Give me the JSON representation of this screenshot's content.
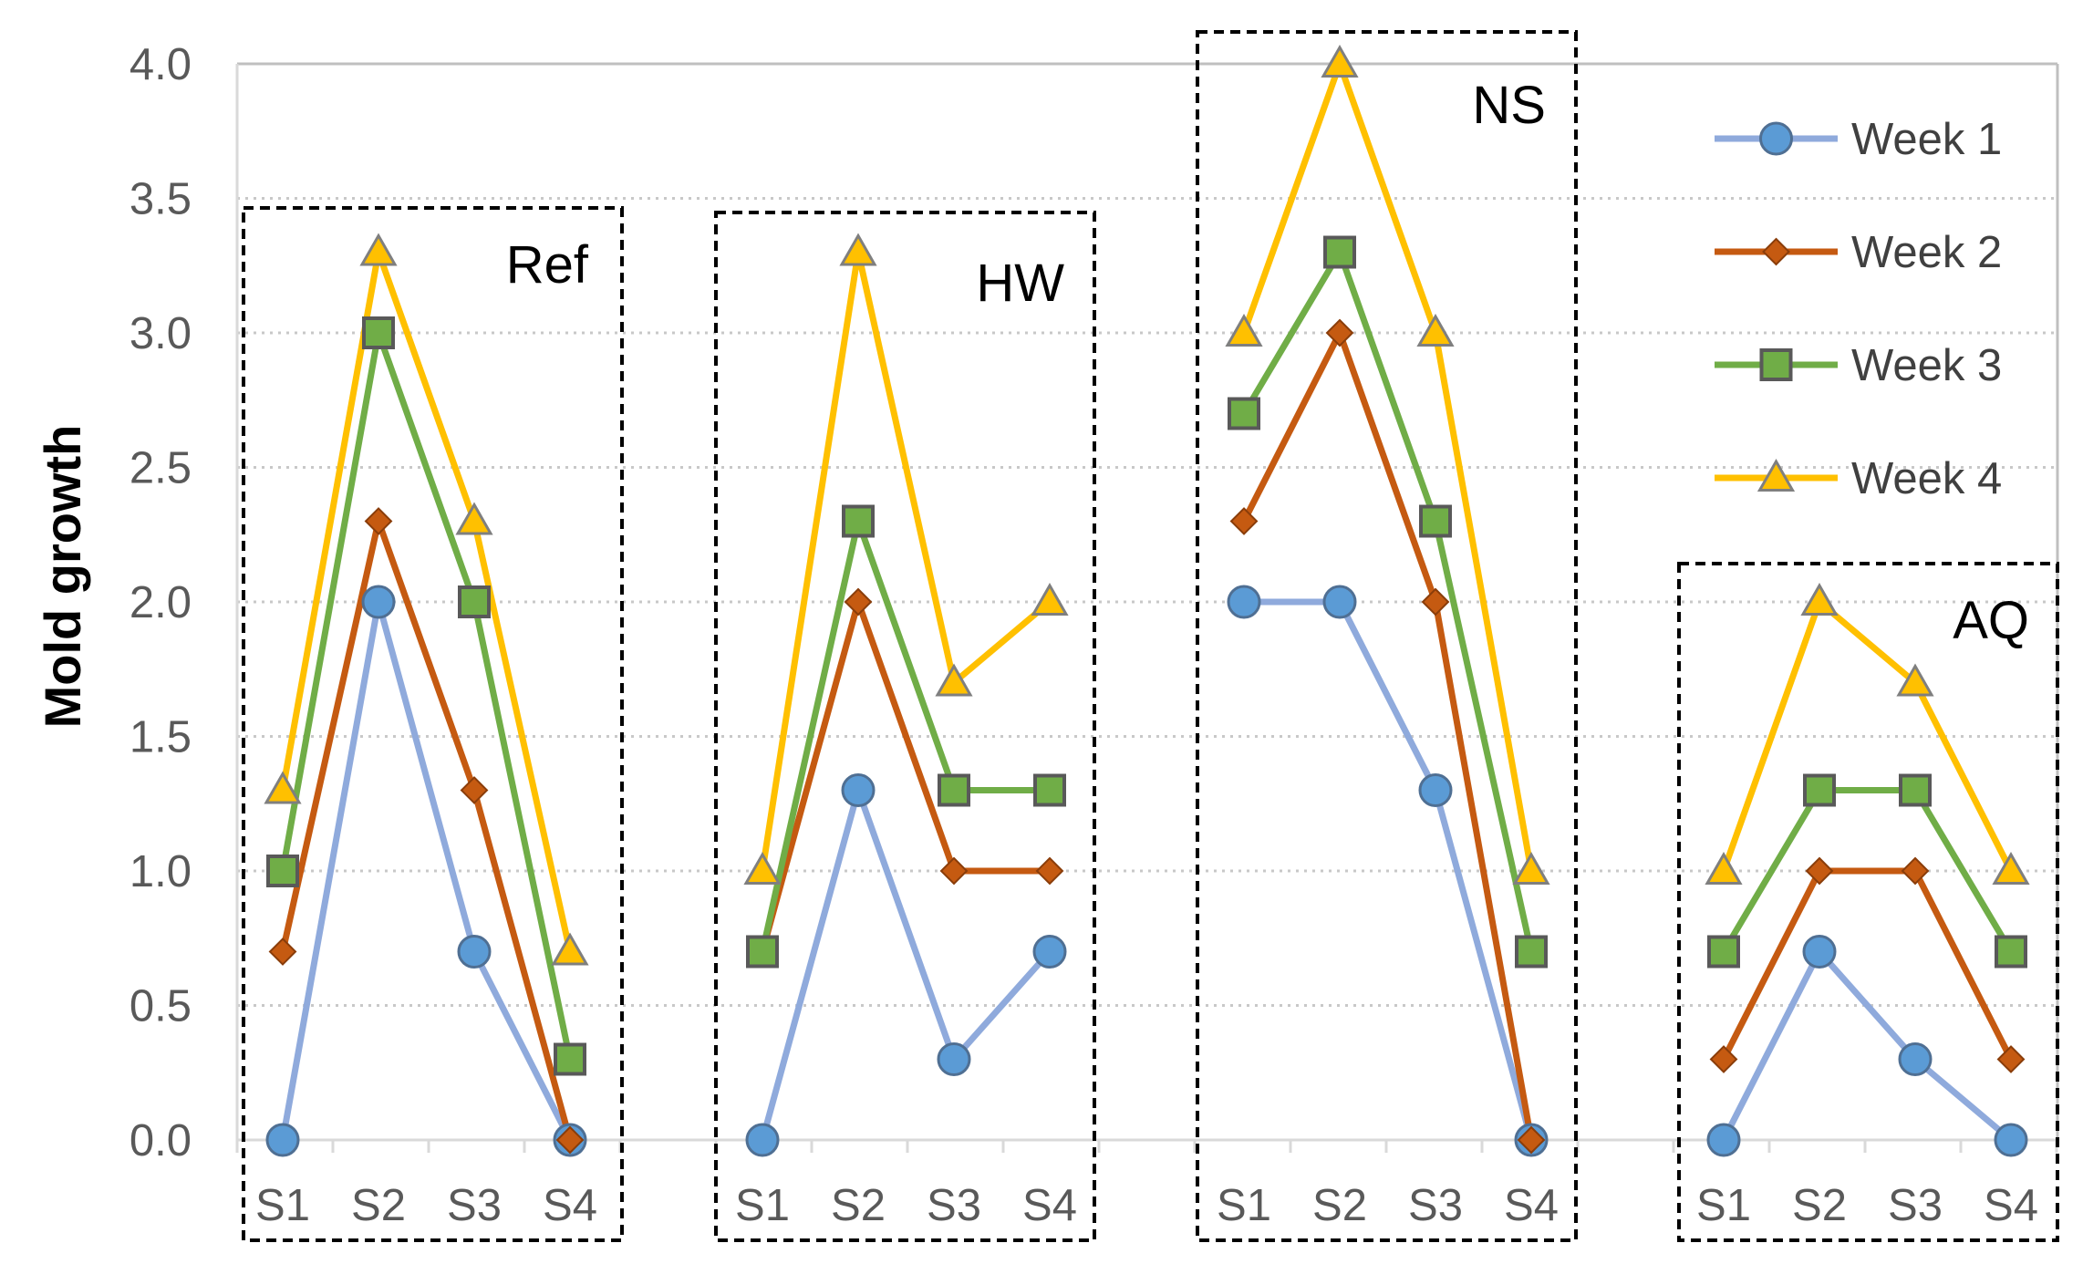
{
  "chart_data": {
    "type": "line",
    "ylabel": "Mold growth",
    "ylim": [
      0,
      4
    ],
    "yticks": [
      "0.0",
      "0.5",
      "1.0",
      "1.5",
      "2.0",
      "2.5",
      "3.0",
      "3.5",
      "4.0"
    ],
    "grid": true,
    "legend_position": "top-right",
    "categories": [
      "S1",
      "S2",
      "S3",
      "S4"
    ],
    "groups": [
      {
        "label": "Ref",
        "series": [
          {
            "name": "Week 1",
            "values": [
              0.0,
              2.0,
              0.7,
              0.0
            ]
          },
          {
            "name": "Week 2",
            "values": [
              0.7,
              2.3,
              1.3,
              0.0
            ]
          },
          {
            "name": "Week 3",
            "values": [
              1.0,
              3.0,
              2.0,
              0.3
            ]
          },
          {
            "name": "Week 4",
            "values": [
              1.3,
              3.3,
              2.3,
              0.7
            ]
          }
        ]
      },
      {
        "label": "HW",
        "series": [
          {
            "name": "Week 1",
            "values": [
              0.0,
              1.3,
              0.3,
              0.7
            ]
          },
          {
            "name": "Week 2",
            "values": [
              0.7,
              2.0,
              1.0,
              1.0
            ]
          },
          {
            "name": "Week 3",
            "values": [
              0.7,
              2.3,
              1.3,
              1.3
            ]
          },
          {
            "name": "Week 4",
            "values": [
              1.0,
              3.3,
              1.7,
              2.0
            ]
          }
        ]
      },
      {
        "label": "NS",
        "series": [
          {
            "name": "Week 1",
            "values": [
              2.0,
              2.0,
              1.3,
              0.0
            ]
          },
          {
            "name": "Week 2",
            "values": [
              2.3,
              3.0,
              2.0,
              0.0
            ]
          },
          {
            "name": "Week 3",
            "values": [
              2.7,
              3.3,
              2.3,
              0.7
            ]
          },
          {
            "name": "Week 4",
            "values": [
              3.0,
              4.0,
              3.0,
              1.0
            ]
          }
        ]
      },
      {
        "label": "AQ",
        "series": [
          {
            "name": "Week 1",
            "values": [
              0.0,
              0.7,
              0.3,
              0.0
            ]
          },
          {
            "name": "Week 2",
            "values": [
              0.3,
              1.0,
              1.0,
              0.3
            ]
          },
          {
            "name": "Week 3",
            "values": [
              0.7,
              1.3,
              1.3,
              0.7
            ]
          },
          {
            "name": "Week 4",
            "values": [
              1.0,
              2.0,
              1.7,
              1.0
            ]
          }
        ]
      }
    ],
    "legend": [
      {
        "name": "Week 1",
        "color": "#8faadc",
        "marker": "circle",
        "marker_color": "#5b9bd5"
      },
      {
        "name": "Week 2",
        "color": "#c55a11",
        "marker": "diamond",
        "marker_color": "#c55a11"
      },
      {
        "name": "Week 3",
        "color": "#70ad47",
        "marker": "square",
        "marker_color": "#70ad47"
      },
      {
        "name": "Week 4",
        "color": "#ffc000",
        "marker": "triangle",
        "marker_color": "#ffc000"
      }
    ]
  }
}
